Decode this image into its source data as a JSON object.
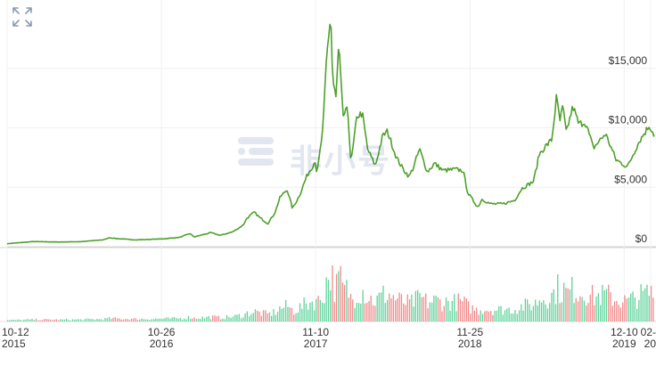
{
  "chart_data": {
    "type": "line",
    "price_series": {
      "color": "#4ea02a",
      "points": [
        [
          "2015-10-12",
          250
        ],
        [
          "2015-12-15",
          430
        ],
        [
          "2016-02-15",
          390
        ],
        [
          "2016-04-15",
          430
        ],
        [
          "2016-06-05",
          580
        ],
        [
          "2016-06-20",
          750
        ],
        [
          "2016-07-15",
          660
        ],
        [
          "2016-08-25",
          570
        ],
        [
          "2016-10-26",
          650
        ],
        [
          "2016-12-10",
          780
        ],
        [
          "2017-01-04",
          1100
        ],
        [
          "2017-01-15",
          820
        ],
        [
          "2017-02-25",
          1180
        ],
        [
          "2017-03-20",
          950
        ],
        [
          "2017-04-20",
          1250
        ],
        [
          "2017-05-15",
          1800
        ],
        [
          "2017-05-25",
          2400
        ],
        [
          "2017-06-12",
          2900
        ],
        [
          "2017-06-25",
          2450
        ],
        [
          "2017-07-15",
          1950
        ],
        [
          "2017-08-01",
          2800
        ],
        [
          "2017-08-15",
          4200
        ],
        [
          "2017-09-01",
          4800
        ],
        [
          "2017-09-14",
          3200
        ],
        [
          "2017-10-01",
          4300
        ],
        [
          "2017-10-20",
          6000
        ],
        [
          "2017-11-01",
          6700
        ],
        [
          "2017-11-10",
          7300
        ],
        [
          "2017-11-13",
          6000
        ],
        [
          "2017-11-28",
          9900
        ],
        [
          "2017-12-07",
          16000
        ],
        [
          "2017-12-17",
          19500
        ],
        [
          "2017-12-22",
          14000
        ],
        [
          "2017-12-30",
          12500
        ],
        [
          "2018-01-06",
          17000
        ],
        [
          "2018-01-16",
          11000
        ],
        [
          "2018-01-28",
          11500
        ],
        [
          "2018-02-05",
          7000
        ],
        [
          "2018-02-20",
          11000
        ],
        [
          "2018-03-05",
          11200
        ],
        [
          "2018-03-18",
          8200
        ],
        [
          "2018-04-06",
          6800
        ],
        [
          "2018-04-24",
          9300
        ],
        [
          "2018-05-06",
          9700
        ],
        [
          "2018-05-28",
          7500
        ],
        [
          "2018-06-12",
          6600
        ],
        [
          "2018-06-28",
          5900
        ],
        [
          "2018-07-08",
          6600
        ],
        [
          "2018-07-24",
          8200
        ],
        [
          "2018-08-12",
          6300
        ],
        [
          "2018-08-30",
          7000
        ],
        [
          "2018-09-20",
          6400
        ],
        [
          "2018-10-20",
          6500
        ],
        [
          "2018-11-08",
          6400
        ],
        [
          "2018-11-20",
          4500
        ],
        [
          "2018-12-15",
          3300
        ],
        [
          "2018-12-24",
          4000
        ],
        [
          "2019-01-15",
          3600
        ],
        [
          "2019-02-15",
          3600
        ],
        [
          "2019-03-15",
          3900
        ],
        [
          "2019-04-02",
          4900
        ],
        [
          "2019-05-01",
          5500
        ],
        [
          "2019-05-15",
          7800
        ],
        [
          "2019-06-01",
          8500
        ],
        [
          "2019-06-15",
          9000
        ],
        [
          "2019-06-26",
          12500
        ],
        [
          "2019-07-05",
          10600
        ],
        [
          "2019-07-12",
          11800
        ],
        [
          "2019-07-20",
          9600
        ],
        [
          "2019-08-06",
          11800
        ],
        [
          "2019-08-20",
          10300
        ],
        [
          "2019-09-05",
          10500
        ],
        [
          "2019-09-25",
          8300
        ],
        [
          "2019-10-25",
          9500
        ],
        [
          "2019-11-20",
          7300
        ],
        [
          "2019-12-18",
          6700
        ],
        [
          "2020-01-15",
          8800
        ],
        [
          "2020-02-10",
          10200
        ],
        [
          "2020-02-22",
          9400
        ]
      ]
    },
    "volume": {
      "up_color": "#5fd39b",
      "down_color": "#f08a8a"
    },
    "y_axis": {
      "ticks": [
        0,
        5000,
        10000,
        15000
      ],
      "tick_labels": [
        "$0",
        "$5,000",
        "$10,000",
        "$15,000"
      ],
      "ylim": [
        0,
        20000
      ]
    },
    "x_axis": {
      "tick_dates": [
        "2015-10-12",
        "2016-10-26",
        "2017-11-10",
        "2018-11-25",
        "2019-12-10",
        "2020-02-22"
      ],
      "tick_labels": [
        {
          "top": "10-12",
          "bottom": "2015"
        },
        {
          "top": "10-26",
          "bottom": "2016"
        },
        {
          "top": "11-10",
          "bottom": "2017"
        },
        {
          "top": "11-25",
          "bottom": "2018"
        },
        {
          "top": "12-10",
          "bottom": "2019"
        },
        {
          "top": "02-",
          "bottom": "20"
        }
      ]
    },
    "grid": true
  },
  "watermark": {
    "text": "非小号",
    "brand_color": "#1a3b8c"
  },
  "controls": {
    "expand_icon": "expand-arrows-icon"
  }
}
